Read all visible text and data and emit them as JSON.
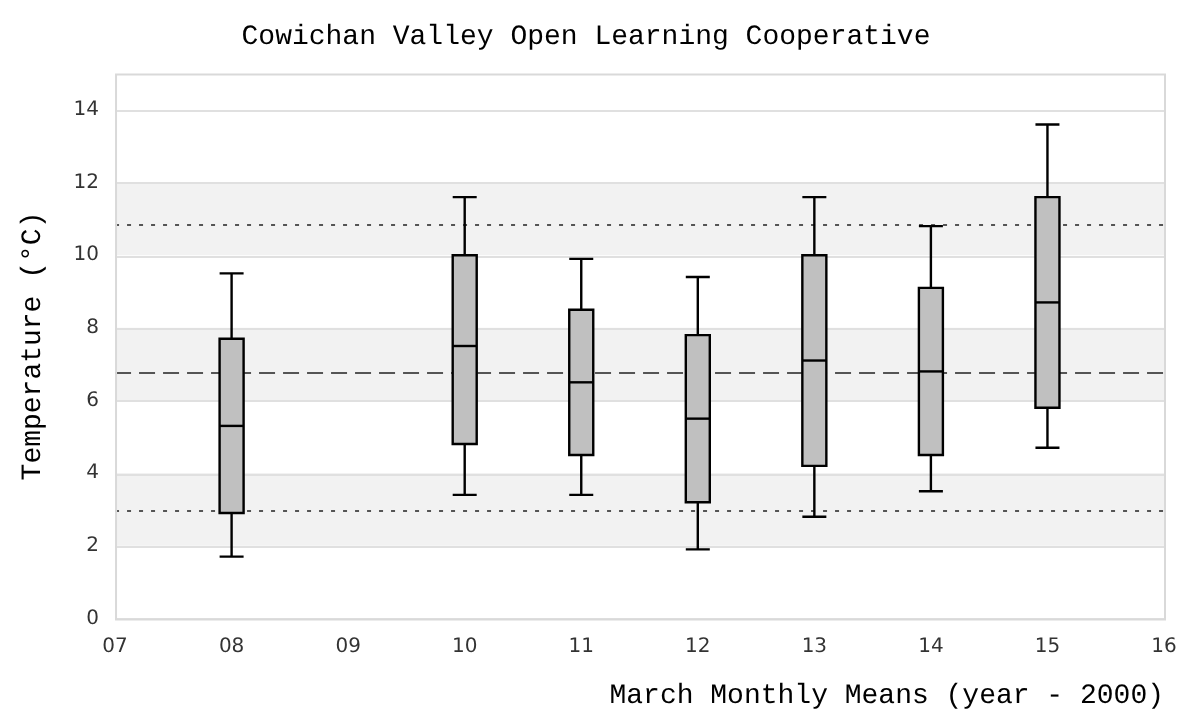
{
  "chart_data": {
    "type": "box",
    "title": "Cowichan Valley Open Learning Cooperative",
    "xlabel": "March Monthly Means (year - 2000)",
    "ylabel": "Temperature (°C)",
    "categories": [
      "07",
      "08",
      "09",
      "10",
      "11",
      "12",
      "13",
      "14",
      "15",
      "16"
    ],
    "color": "#c0c0c0",
    "boxes": [
      null,
      {
        "low": 1.7,
        "q1": 2.9,
        "median": 5.3,
        "q3": 7.7,
        "high": 9.5
      },
      null,
      {
        "low": 3.4,
        "q1": 4.8,
        "median": 7.5,
        "q3": 10.0,
        "high": 11.6
      },
      {
        "low": 3.4,
        "q1": 4.5,
        "median": 6.5,
        "q3": 8.5,
        "high": 9.9
      },
      {
        "low": 1.9,
        "q1": 3.2,
        "median": 5.5,
        "q3": 7.8,
        "high": 9.4
      },
      {
        "low": 2.8,
        "q1": 4.2,
        "median": 7.1,
        "q3": 10.0,
        "high": 11.6
      },
      {
        "low": 3.5,
        "q1": 4.5,
        "median": 6.8,
        "q3": 9.1,
        "high": 10.8
      },
      {
        "low": 4.7,
        "q1": 5.8,
        "median": 8.7,
        "q3": 11.6,
        "high": 13.6
      },
      null
    ],
    "ylim": [
      0,
      15
    ],
    "yticks": [
      0,
      2,
      4,
      6,
      8,
      10,
      12,
      14
    ],
    "grid": "y",
    "ref_lines": [
      {
        "axis": "y",
        "value": 10.85,
        "color": "#555555",
        "line_style": "dotted"
      },
      {
        "axis": "y",
        "value": 6.8,
        "color": "#555555",
        "line_style": "dashed"
      },
      {
        "axis": "y",
        "value": 3.0,
        "color": "#555555",
        "line_style": "dotted"
      }
    ],
    "bands": [
      {
        "axis": "y",
        "from": 2,
        "to": 4,
        "color": "#f2f2f2"
      },
      {
        "axis": "y",
        "from": 6,
        "to": 8,
        "color": "#f2f2f2"
      },
      {
        "axis": "y",
        "from": 10,
        "to": 12,
        "color": "#f2f2f2"
      }
    ]
  }
}
